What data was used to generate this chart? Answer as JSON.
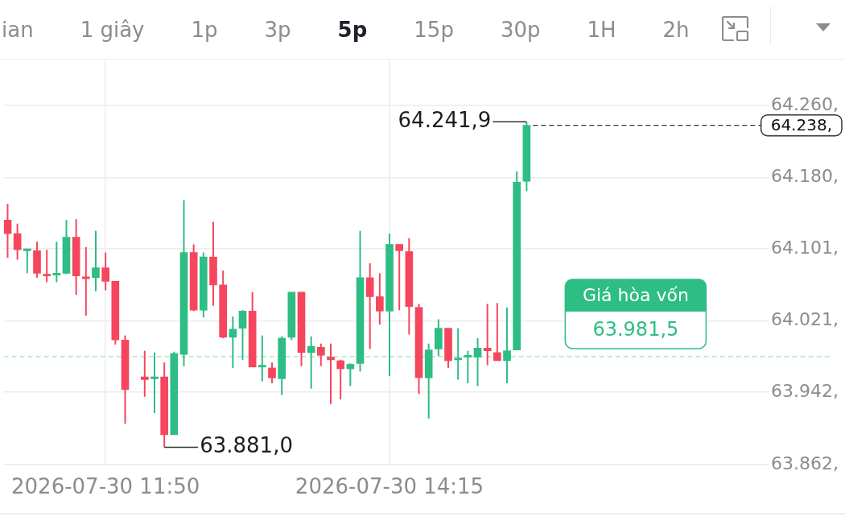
{
  "chart_data": {
    "type": "candlestick",
    "x": [
      "2026-07-30T11:00",
      "2026-07-30T11:05",
      "2026-07-30T11:10",
      "2026-07-30T11:15",
      "2026-07-30T11:20",
      "2026-07-30T11:25",
      "2026-07-30T11:30",
      "2026-07-30T11:35",
      "2026-07-30T11:40",
      "2026-07-30T11:45",
      "2026-07-30T11:50",
      "2026-07-30T11:55",
      "2026-07-30T12:00",
      "2026-07-30T12:10",
      "2026-07-30T12:15",
      "2026-07-30T12:20",
      "2026-07-30T12:25",
      "2026-07-30T12:30",
      "2026-07-30T12:35",
      "2026-07-30T12:40",
      "2026-07-30T12:45",
      "2026-07-30T12:50",
      "2026-07-30T12:55",
      "2026-07-30T13:00",
      "2026-07-30T13:05",
      "2026-07-30T13:10",
      "2026-07-30T13:15",
      "2026-07-30T13:20",
      "2026-07-30T13:25",
      "2026-07-30T13:30",
      "2026-07-30T13:35",
      "2026-07-30T13:40",
      "2026-07-30T13:45",
      "2026-07-30T13:50",
      "2026-07-30T13:55",
      "2026-07-30T14:00",
      "2026-07-30T14:05",
      "2026-07-30T14:10",
      "2026-07-30T14:15",
      "2026-07-30T14:20",
      "2026-07-30T14:25",
      "2026-07-30T14:30",
      "2026-07-30T14:35",
      "2026-07-30T14:40",
      "2026-07-30T14:45",
      "2026-07-30T14:50",
      "2026-07-30T14:55",
      "2026-07-30T15:00",
      "2026-07-30T15:05",
      "2026-07-30T15:10",
      "2026-07-30T15:15",
      "2026-07-30T15:20",
      "2026-07-30T15:25"
    ],
    "ohlc": [
      [
        64133,
        64151,
        64091,
        64118
      ],
      [
        64118,
        64129,
        64089,
        64100
      ],
      [
        64099,
        64101,
        64074,
        64101
      ],
      [
        64099,
        64109,
        64069,
        64074
      ],
      [
        64073,
        64100,
        64064,
        64071
      ],
      [
        64072,
        64109,
        64064,
        64074
      ],
      [
        64074,
        64133,
        64073,
        64114
      ],
      [
        64114,
        64134,
        64050,
        64071
      ],
      [
        64070,
        64103,
        64027,
        64068
      ],
      [
        64069,
        64121,
        64054,
        64080
      ],
      [
        64080,
        64097,
        64055,
        64065
      ],
      [
        64065,
        64065,
        63995,
        64000
      ],
      [
        64000,
        64005,
        63907,
        63945
      ],
      [
        63959,
        63988,
        63937,
        63956
      ],
      [
        63957,
        63986,
        63919,
        63959
      ],
      [
        63959,
        63975,
        63881.0,
        63895
      ],
      [
        63895,
        63987,
        63895,
        63985
      ],
      [
        63984,
        64155,
        63971,
        64097
      ],
      [
        64097,
        64106,
        64032,
        64033
      ],
      [
        64033,
        64097,
        64025,
        64092
      ],
      [
        64092,
        64131,
        64038,
        64061
      ],
      [
        64061,
        64077,
        64002,
        64003
      ],
      [
        64003,
        64026,
        63969,
        64012
      ],
      [
        64013,
        64033,
        63978,
        64032
      ],
      [
        64032,
        64053,
        63970,
        63970
      ],
      [
        63970,
        64005,
        63954,
        63972
      ],
      [
        63969,
        63975,
        63952,
        63958
      ],
      [
        63957,
        64004,
        63939,
        64002
      ],
      [
        64003,
        64053,
        64000,
        64053
      ],
      [
        64053,
        64053,
        63971,
        63986
      ],
      [
        63986,
        64004,
        63946,
        63993
      ],
      [
        63992,
        63996,
        63971,
        63983
      ],
      [
        63981,
        63996,
        63929,
        63978
      ],
      [
        63977,
        63978,
        63934,
        63968
      ],
      [
        63968,
        63974,
        63949,
        63973
      ],
      [
        63974,
        64121,
        63965,
        64069
      ],
      [
        64069,
        64085,
        63990,
        64048
      ],
      [
        64048,
        64074,
        64017,
        64032
      ],
      [
        64032,
        64118,
        63960,
        64106
      ],
      [
        64106,
        64106,
        64033,
        64099
      ],
      [
        64098,
        64113,
        64006,
        64037
      ],
      [
        64036,
        64040,
        63940,
        63958
      ],
      [
        63958,
        63996,
        63913,
        63989
      ],
      [
        63990,
        64023,
        63982,
        64013
      ],
      [
        64013,
        64013,
        63969,
        63977
      ],
      [
        63978,
        64013,
        63956,
        63980
      ],
      [
        63981,
        63988,
        63952,
        63983
      ],
      [
        63981,
        64002,
        63949,
        63991
      ],
      [
        63991,
        64040,
        63972,
        63988
      ],
      [
        63986,
        64041,
        63977,
        63977
      ],
      [
        63977,
        64036,
        63952,
        63988
      ],
      [
        63989,
        64187,
        63989,
        64175
      ],
      [
        64176,
        64241.9,
        64165,
        64238
      ]
    ],
    "colors": [
      "#f6465d",
      "#f6465d",
      "#2ebd85",
      "#f6465d",
      "#f6465d",
      "#2ebd85",
      "#2ebd85",
      "#f6465d",
      "#f6465d",
      "#2ebd85",
      "#f6465d",
      "#f6465d",
      "#f6465d",
      "#f6465d",
      "#2ebd85",
      "#f6465d",
      "#2ebd85",
      "#2ebd85",
      "#f6465d",
      "#2ebd85",
      "#f6465d",
      "#f6465d",
      "#2ebd85",
      "#2ebd85",
      "#f6465d",
      "#2ebd85",
      "#f6465d",
      "#2ebd85",
      "#2ebd85",
      "#f6465d",
      "#2ebd85",
      "#f6465d",
      "#f6465d",
      "#f6465d",
      "#2ebd85",
      "#2ebd85",
      "#f6465d",
      "#f6465d",
      "#2ebd85",
      "#f6465d",
      "#f6465d",
      "#f6465d",
      "#2ebd85",
      "#2ebd85",
      "#f6465d",
      "#2ebd85",
      "#2ebd85",
      "#2ebd85",
      "#f6465d",
      "#f6465d",
      "#2ebd85",
      "#2ebd85",
      "#2ebd85"
    ],
    "xlim": [
      "2026-07-30T10:58",
      "2026-07-30T18:01"
    ],
    "xticks": [
      {
        "value": "2026-07-30T11:50",
        "label": "2026-07-30 11:50"
      },
      {
        "value": "2026-07-30T14:15",
        "label": "2026-07-30 14:15"
      }
    ],
    "ylim": [
      63862,
      64310
    ],
    "yticks": [
      {
        "value": 63862,
        "label": "63.862,"
      },
      {
        "value": 63942,
        "label": "63.942,"
      },
      {
        "value": 64021,
        "label": "64.021,"
      },
      {
        "value": 64101,
        "label": "64.101,"
      },
      {
        "value": 64180,
        "label": "64.180,"
      },
      {
        "value": 64260,
        "label": "64.260,"
      }
    ],
    "grid": true,
    "ref_lines": [
      {
        "axis": "y",
        "value": 64238,
        "label": "64.238,",
        "color": "#333333",
        "line_style": "dashed"
      },
      {
        "axis": "y",
        "value": 63981.5,
        "label": "Giá hòa vốn",
        "color": "#a3dfc6",
        "line_style": "dashed"
      }
    ],
    "annotations": [
      "ian",
      "1 giây",
      "1p",
      "3p",
      "5p",
      "15p",
      "30p",
      "1H",
      "2h",
      {
        "text": "64.241,9",
        "x": "2026-07-30T15:25",
        "y": 64241.9
      },
      {
        "text": "63.881,0",
        "x": "2026-07-30T12:20",
        "y": 63881.0
      },
      {
        "text": "63.981,5",
        "y": 63981.5
      }
    ]
  }
}
